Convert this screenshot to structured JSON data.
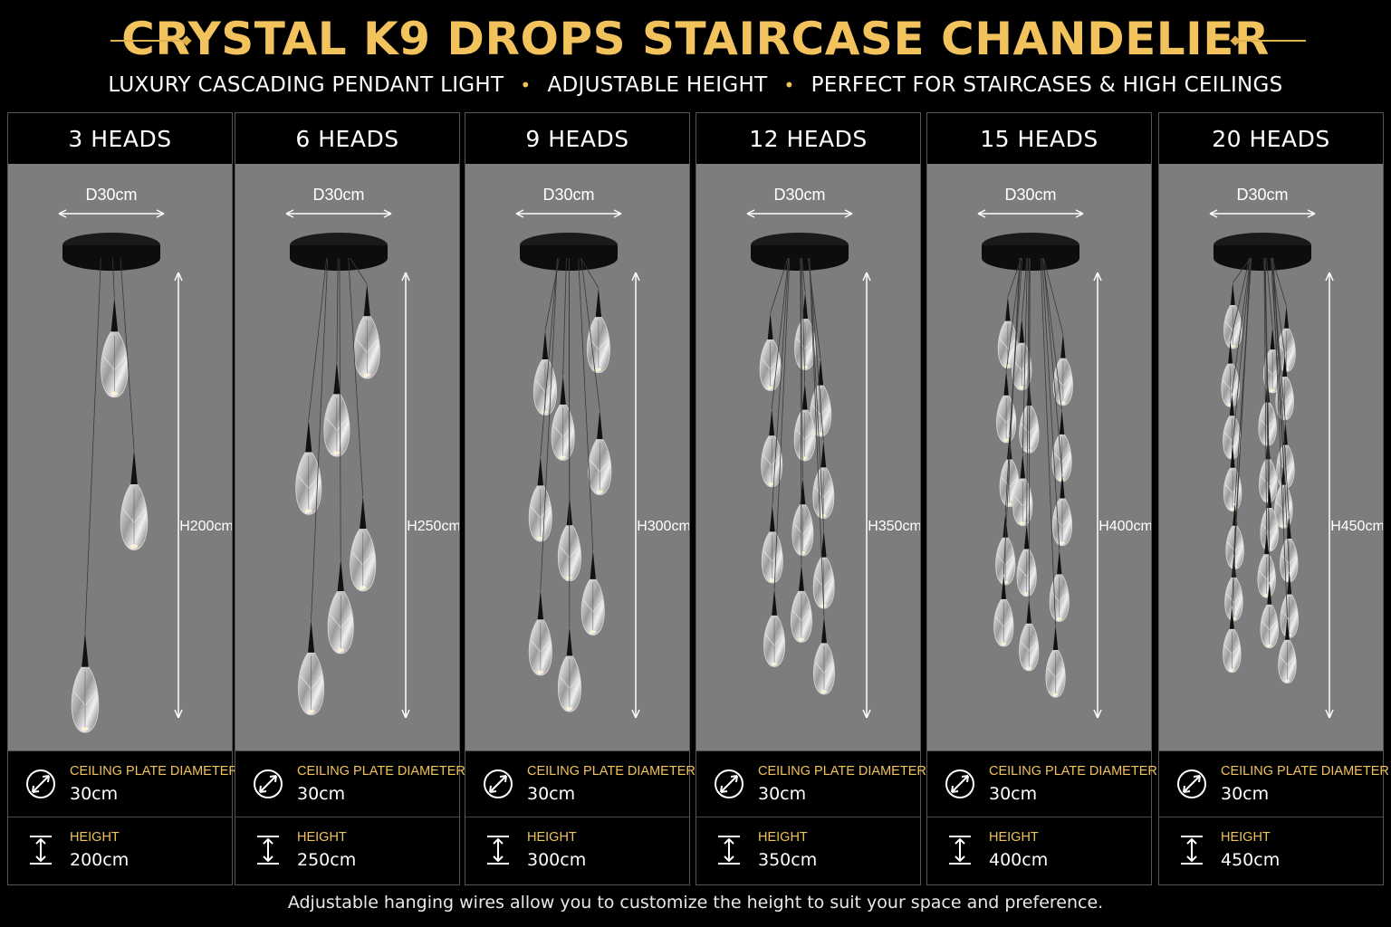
{
  "header": {
    "title": "CRYSTAL K9 DROPS STAIRCASE CHANDELIER",
    "subtitle_parts": [
      "LUXURY CASCADING PENDANT LIGHT",
      "ADJUSTABLE HEIGHT",
      "PERFECT FOR STAIRCASES & HIGH CEILINGS"
    ],
    "separator": "•"
  },
  "colors": {
    "accent": "#f2c25c",
    "panel_bg": "#7d7d7d",
    "background": "#000000"
  },
  "spec_labels": {
    "diameter": "CEILING PLATE DIAMETER",
    "height": "HEIGHT"
  },
  "icons": {
    "diameter": "diameter-icon",
    "height": "height-icon"
  },
  "models": [
    {
      "heads_label": "3 HEADS",
      "head_count": 3,
      "diameter_label": "D30cm",
      "height_label": "H200cm",
      "diameter_value": "30cm",
      "height_value": "200cm"
    },
    {
      "heads_label": "6 HEADS",
      "head_count": 6,
      "diameter_label": "D30cm",
      "height_label": "H250cm",
      "diameter_value": "30cm",
      "height_value": "250cm"
    },
    {
      "heads_label": "9 HEADS",
      "head_count": 9,
      "diameter_label": "D30cm",
      "height_label": "H300cm",
      "diameter_value": "30cm",
      "height_value": "300cm"
    },
    {
      "heads_label": "12 HEADS",
      "head_count": 12,
      "diameter_label": "D30cm",
      "height_label": "H350cm",
      "diameter_value": "30cm",
      "height_value": "350cm"
    },
    {
      "heads_label": "15 HEADS",
      "head_count": 15,
      "diameter_label": "D30cm",
      "height_label": "H400cm",
      "diameter_value": "30cm",
      "height_value": "400cm"
    },
    {
      "heads_label": "20 HEADS",
      "head_count": 20,
      "diameter_label": "D30cm",
      "height_label": "H450cm",
      "diameter_value": "30cm",
      "height_value": "450cm"
    }
  ],
  "footer": "Adjustable hanging wires allow you to customize the height to suit your space and preference."
}
